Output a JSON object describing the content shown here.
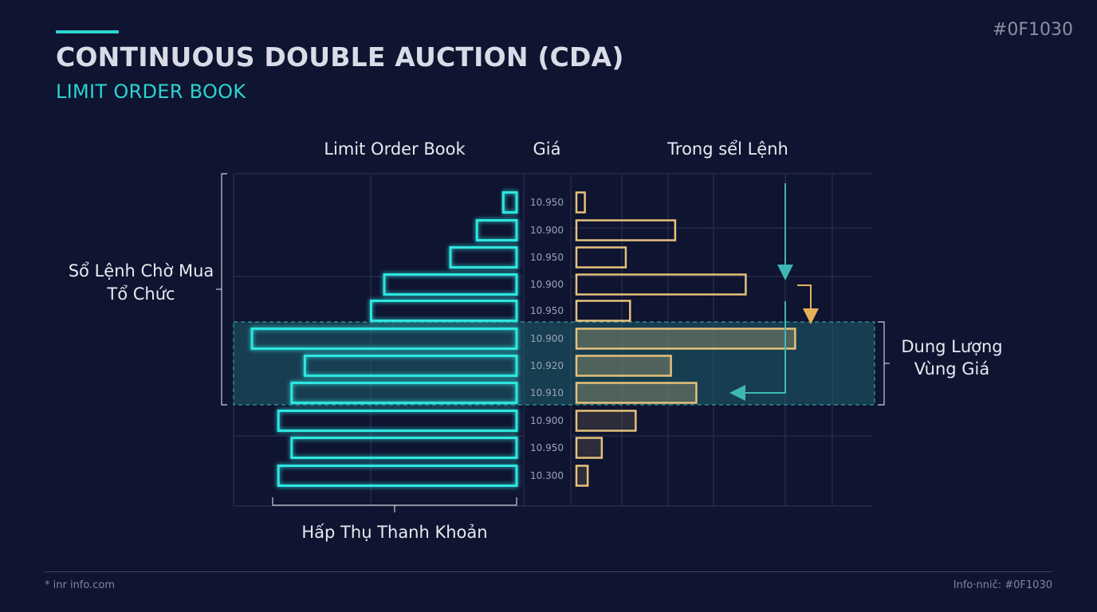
{
  "header": {
    "title": "CONTINUOUS DOUBLE AUCTION (CDA)",
    "subtitle": "LIMIT ORDER BOOK",
    "corner_tag": "#0F1030"
  },
  "footer": {
    "left": "* inr info.com",
    "right": "Info·nnič: #0F1030"
  },
  "colors": {
    "background": "#0f1430",
    "bid": "#2ee6e0",
    "ask": "#e6c27a",
    "grid": "#2c3554",
    "highlight": "#1f5f6e",
    "text": "#e8eaf0",
    "muted": "#9aa3b8"
  },
  "chart_data": {
    "type": "bar",
    "column_headers": [
      "Limit Order Book",
      "Giá",
      "Trong sểl Lệnh"
    ],
    "categories": [
      "10.950",
      "10.900",
      "10.950",
      "10.900",
      "10.950",
      "10.900",
      "10.920",
      "10.910",
      "10.900",
      "10.950",
      "10.300"
    ],
    "series": [
      {
        "side": "bid",
        "values": [
          1,
          3,
          5,
          10,
          11,
          20,
          16,
          17,
          18,
          17,
          18
        ]
      },
      {
        "side": "ask",
        "values": [
          0.6,
          7,
          3.5,
          12,
          3.8,
          15.5,
          6.7,
          8.5,
          4.2,
          1.8,
          0.8
        ]
      }
    ],
    "xlim": [
      0,
      20
    ],
    "highlight_rows": [
      5,
      7
    ],
    "annotations": {
      "left_bracket": "Sổ Lệnh Chờ Mua Tổ Chức",
      "right_bracket": "Dung Lượng Vùng Giá",
      "bottom_bracket": "Hấp Thụ Thanh Khoản"
    },
    "grid": true
  }
}
